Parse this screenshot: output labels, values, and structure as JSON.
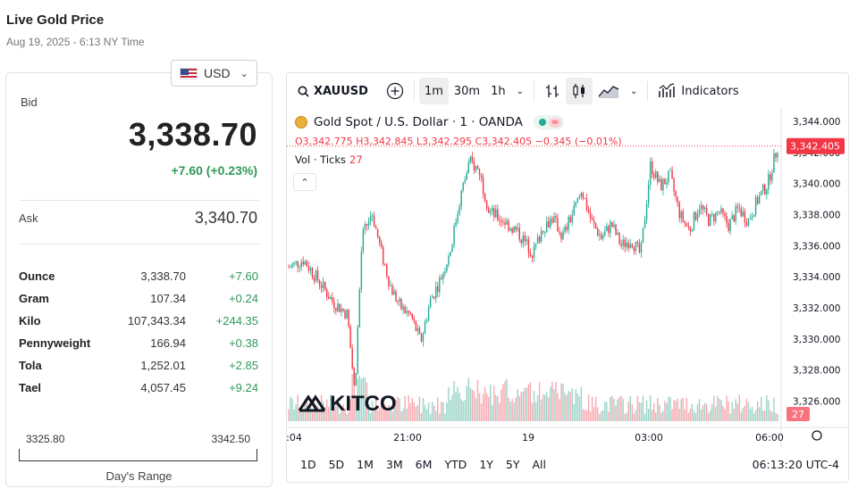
{
  "page": {
    "title": "Live Gold Price",
    "subtitle": "Aug 19, 2025 - 6:13 NY Time"
  },
  "currency": {
    "selected": "USD"
  },
  "bid": {
    "label": "Bid",
    "value": "3,338.70",
    "change": "+7.60 (+0.23%)"
  },
  "ask": {
    "label": "Ask",
    "value": "3,340.70"
  },
  "units": [
    {
      "name": "Ounce",
      "price": "3,338.70",
      "change": "+7.60"
    },
    {
      "name": "Gram",
      "price": "107.34",
      "change": "+0.24"
    },
    {
      "name": "Kilo",
      "price": "107,343.34",
      "change": "+244.35"
    },
    {
      "name": "Pennyweight",
      "price": "166.94",
      "change": "+0.38"
    },
    {
      "name": "Tola",
      "price": "1,252.01",
      "change": "+2.85"
    },
    {
      "name": "Tael",
      "price": "4,057.45",
      "change": "+9.24"
    }
  ],
  "days_range": {
    "low": "3325.80",
    "high": "3342.50",
    "label": "Day's Range"
  },
  "toolbar": {
    "symbol": "XAUUSD",
    "intervals": [
      "1m",
      "30m",
      "1h"
    ],
    "active_interval": "1m",
    "indicators_label": "Indicators"
  },
  "legend": {
    "title": "Gold Spot / U.S. Dollar · 1 · OANDA",
    "ohlc": "O3,342.775  H3,342.845  L3,342.295  C3,342.405  −0.345 (−0.01%)",
    "volume_label": "Vol · Ticks",
    "volume_value": "27",
    "wave_glyph": "≈"
  },
  "watermark": "KITCO",
  "ranges": [
    "1D",
    "5D",
    "1M",
    "3M",
    "6M",
    "YTD",
    "1Y",
    "5Y",
    "All"
  ],
  "clock": "06:13:20 UTC-4",
  "colors": {
    "up": "#22ab94",
    "down": "#f23645",
    "accent_green": "#2e9a5a"
  },
  "chart_data": {
    "type": "candlestick",
    "title": "Gold Spot / U.S. Dollar · 1 · OANDA",
    "y_ticks": [
      "3,344.000",
      "3,342.000",
      "3,340.000",
      "3,338.000",
      "3,336.000",
      "3,334.000",
      "3,332.000",
      "3,330.000",
      "3,328.000",
      "3,326.000"
    ],
    "ylim": [
      3325.0,
      3344.8
    ],
    "x_ticks": [
      ":04",
      "21:00",
      "19",
      "03:00",
      "06:00"
    ],
    "last_price_label": "3,342.405",
    "last_volume_label": "27",
    "close_path": [
      [
        0,
        3334.6
      ],
      [
        0.03,
        3335.1
      ],
      [
        0.06,
        3333.8
      ],
      [
        0.09,
        3332.4
      ],
      [
        0.12,
        3331.6
      ],
      [
        0.135,
        3326.5
      ],
      [
        0.15,
        3336.5
      ],
      [
        0.17,
        3338.2
      ],
      [
        0.19,
        3335.5
      ],
      [
        0.21,
        3333.2
      ],
      [
        0.23,
        3332.0
      ],
      [
        0.25,
        3331.5
      ],
      [
        0.27,
        3329.8
      ],
      [
        0.29,
        3332.5
      ],
      [
        0.31,
        3333.8
      ],
      [
        0.33,
        3335.6
      ],
      [
        0.35,
        3339.0
      ],
      [
        0.37,
        3341.4
      ],
      [
        0.39,
        3340.8
      ],
      [
        0.41,
        3338.2
      ],
      [
        0.44,
        3337.6
      ],
      [
        0.47,
        3336.8
      ],
      [
        0.5,
        3335.5
      ],
      [
        0.52,
        3337.2
      ],
      [
        0.54,
        3337.8
      ],
      [
        0.56,
        3336.6
      ],
      [
        0.58,
        3338.0
      ],
      [
        0.6,
        3339.5
      ],
      [
        0.62,
        3337.5
      ],
      [
        0.64,
        3336.5
      ],
      [
        0.66,
        3337.4
      ],
      [
        0.68,
        3336.0
      ],
      [
        0.7,
        3336.4
      ],
      [
        0.72,
        3335.4
      ],
      [
        0.74,
        3341.2
      ],
      [
        0.76,
        3339.8
      ],
      [
        0.78,
        3340.5
      ],
      [
        0.8,
        3338.0
      ],
      [
        0.82,
        3337.0
      ],
      [
        0.84,
        3338.6
      ],
      [
        0.86,
        3337.6
      ],
      [
        0.88,
        3338.2
      ],
      [
        0.9,
        3337.3
      ],
      [
        0.92,
        3338.4
      ],
      [
        0.94,
        3337.6
      ],
      [
        0.96,
        3339.0
      ],
      [
        0.98,
        3340.0
      ],
      [
        1.0,
        3342.4
      ]
    ]
  }
}
